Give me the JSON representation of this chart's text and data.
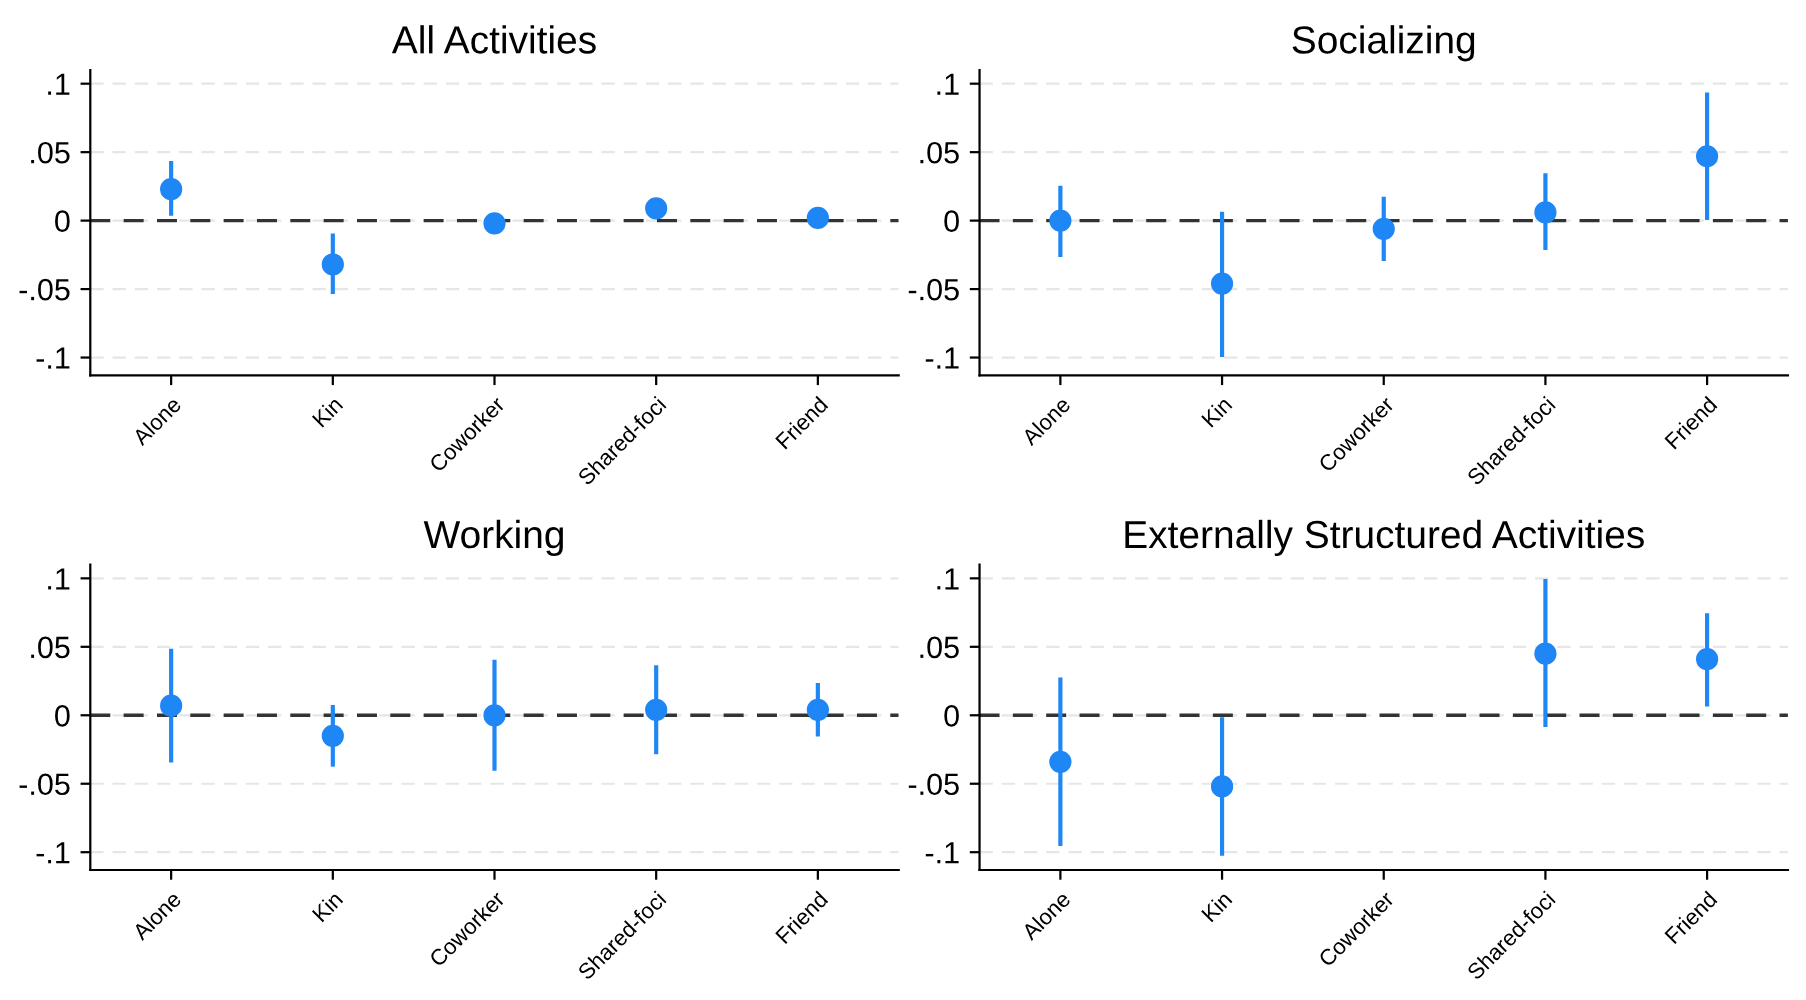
{
  "chart_data": [
    {
      "type": "scatter",
      "title": "All Activities",
      "categories": [
        "Alone",
        "Kin",
        "Coworker",
        "Shared-foci",
        "Friend"
      ],
      "series": [
        {
          "color": "#1f86f5",
          "values": [
            0.023,
            -0.032,
            -0.002,
            0.009,
            0.002
          ],
          "errors": [
            [
              0.005,
              0.042
            ],
            [
              -0.052,
              -0.011
            ],
            [
              -0.004,
              0.0
            ],
            [
              0.005,
              0.013
            ],
            [
              -0.003,
              0.008
            ]
          ]
        }
      ],
      "ylim": [
        -0.113,
        0.11
      ],
      "yticks": [
        {
          "value": -0.1,
          "label": "-.1"
        },
        {
          "value": -0.05,
          "label": "-.05"
        },
        0,
        {
          "value": 0.05,
          "label": ".05"
        },
        {
          "value": 0.1,
          "label": ".1"
        }
      ],
      "ref_lines": [
        {
          "axis": "y",
          "value": 0,
          "color": "#333333",
          "line_style": "dashed"
        }
      ],
      "grid": "y",
      "marker": "circle"
    },
    {
      "type": "scatter",
      "title": "Socializing",
      "categories": [
        "Alone",
        "Kin",
        "Coworker",
        "Shared-foci",
        "Friend"
      ],
      "series": [
        {
          "color": "#1f86f5",
          "values": [
            0.0,
            -0.046,
            -0.006,
            0.006,
            0.047
          ],
          "errors": [
            [
              -0.025,
              0.024
            ],
            [
              -0.098,
              0.005
            ],
            [
              -0.028,
              0.016
            ],
            [
              -0.02,
              0.033
            ],
            [
              0.002,
              0.092
            ]
          ]
        }
      ],
      "ylim": [
        -0.113,
        0.11
      ],
      "yticks": [
        {
          "value": -0.1,
          "label": "-.1"
        },
        {
          "value": -0.05,
          "label": "-.05"
        },
        0,
        {
          "value": 0.05,
          "label": ".05"
        },
        {
          "value": 0.1,
          "label": ".1"
        }
      ],
      "ref_lines": [
        {
          "axis": "y",
          "value": 0,
          "color": "#333333",
          "line_style": "dashed"
        }
      ],
      "grid": "y",
      "marker": "circle"
    },
    {
      "type": "scatter",
      "title": "Working",
      "categories": [
        "Alone",
        "Kin",
        "Coworker",
        "Shared-foci",
        "Friend"
      ],
      "series": [
        {
          "color": "#1f86f5",
          "values": [
            0.007,
            -0.015,
            0.0,
            0.004,
            0.004
          ],
          "errors": [
            [
              -0.033,
              0.047
            ],
            [
              -0.036,
              0.006
            ],
            [
              -0.039,
              0.039
            ],
            [
              -0.027,
              0.035
            ],
            [
              -0.014,
              0.022
            ]
          ]
        }
      ],
      "ylim": [
        -0.113,
        0.11
      ],
      "yticks": [
        {
          "value": -0.1,
          "label": "-.1"
        },
        {
          "value": -0.05,
          "label": "-.05"
        },
        0,
        {
          "value": 0.05,
          "label": ".05"
        },
        {
          "value": 0.1,
          "label": ".1"
        }
      ],
      "ref_lines": [
        {
          "axis": "y",
          "value": 0,
          "color": "#333333",
          "line_style": "dashed"
        }
      ],
      "grid": "y",
      "marker": "circle"
    },
    {
      "type": "scatter",
      "title": "Externally Structured Activities",
      "categories": [
        "Alone",
        "Kin",
        "Coworker",
        "Shared-foci",
        "Friend"
      ],
      "series": [
        {
          "color": "#1f86f5",
          "values": [
            -0.034,
            -0.052,
            null,
            0.045,
            0.041
          ],
          "errors": [
            [
              -0.094,
              0.026
            ],
            [
              -0.101,
              -0.003
            ],
            null,
            [
              -0.007,
              0.098
            ],
            [
              0.008,
              0.073
            ]
          ]
        }
      ],
      "ylim": [
        -0.113,
        0.11
      ],
      "yticks": [
        {
          "value": -0.1,
          "label": "-.1"
        },
        {
          "value": -0.05,
          "label": "-.05"
        },
        0,
        {
          "value": 0.05,
          "label": ".05"
        },
        {
          "value": 0.1,
          "label": ".1"
        }
      ],
      "ref_lines": [
        {
          "axis": "y",
          "value": 0,
          "color": "#333333",
          "line_style": "dashed"
        }
      ],
      "grid": "y",
      "marker": "circle"
    }
  ]
}
